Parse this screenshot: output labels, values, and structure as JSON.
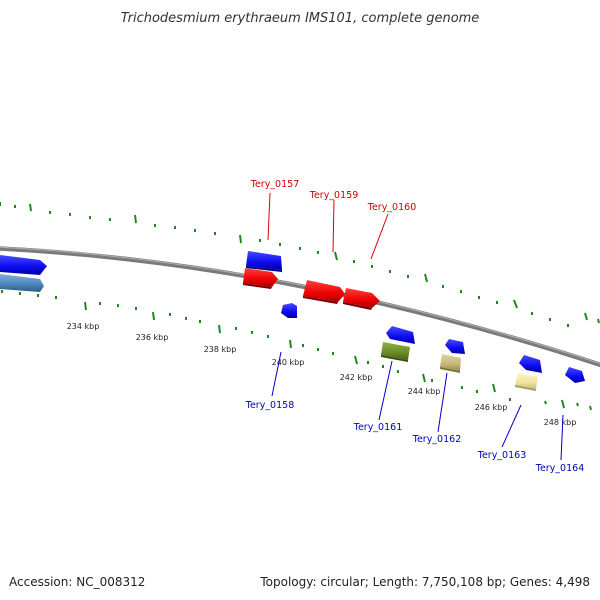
{
  "title": "Trichodesmium erythraeum IMS101, complete genome",
  "footer": {
    "accession": "Accession: NC_008312",
    "summary": "Topology: circular; Length: 7,750,108 bp; Genes: 4,498"
  },
  "scale_labels": [
    "234 kbp",
    "236 kbp",
    "238 kbp",
    "240 kbp",
    "242 kbp",
    "244 kbp",
    "246 kbp",
    "248 kbp"
  ],
  "features": {
    "forward_labels": [
      "Tery_0157",
      "Tery_0159",
      "Tery_0160"
    ],
    "reverse_labels": [
      "Tery_0158",
      "Tery_0161",
      "Tery_0162",
      "Tery_0163",
      "Tery_0164"
    ]
  },
  "colors": {
    "forward_gene": "#ee1111",
    "reverse_gene": "#1a1aee",
    "forward_label": "#cc0000",
    "reverse_label": "#0000bb",
    "tick": "#1e8a1e",
    "backbone": "#808080",
    "olive_gene": "#6f8f2a",
    "khaki_gene": "#c8bc7c",
    "pale_yellow_gene": "#efe6a0",
    "steel_blue_gene": "#4f86b8"
  }
}
